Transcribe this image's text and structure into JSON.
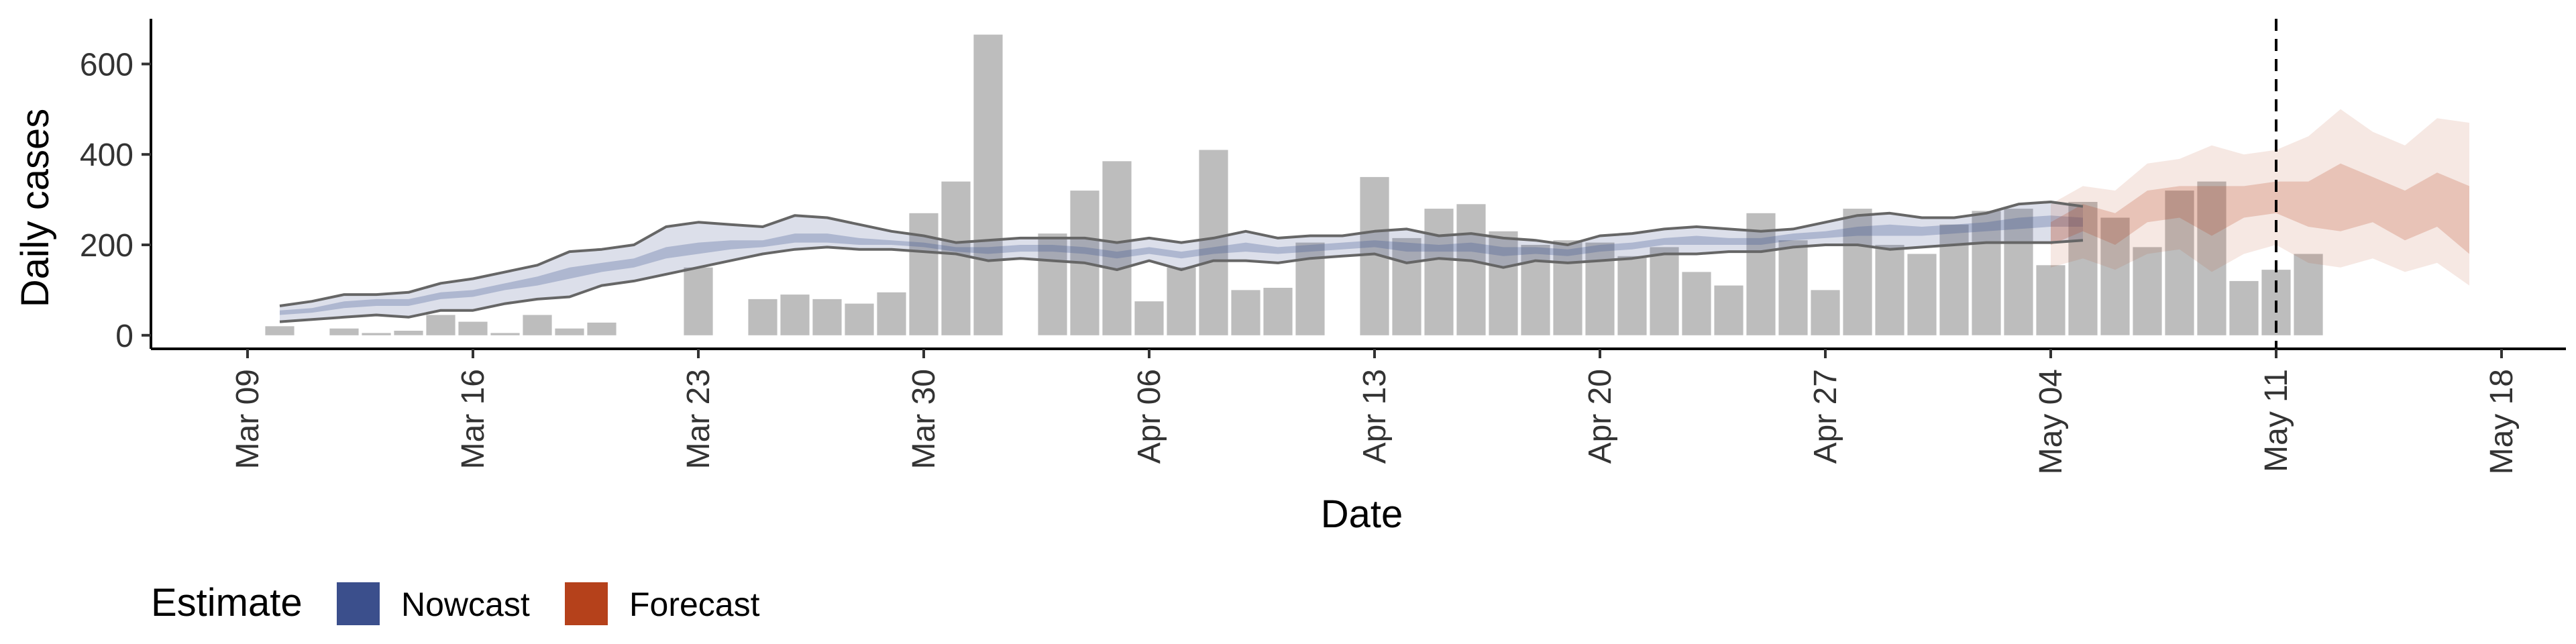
{
  "chart_data": {
    "type": "bar",
    "ylabel": "Daily cases",
    "xlabel": "Date",
    "ylim": [
      -30,
      700
    ],
    "y_ticks": [
      0,
      200,
      400,
      600
    ],
    "x_range": [
      "2020-03-06",
      "2020-05-20"
    ],
    "x_ticks": [
      {
        "date": "2020-03-09",
        "label": "Mar 09"
      },
      {
        "date": "2020-03-16",
        "label": "Mar 16"
      },
      {
        "date": "2020-03-23",
        "label": "Mar 23"
      },
      {
        "date": "2020-03-30",
        "label": "Mar 30"
      },
      {
        "date": "2020-04-06",
        "label": "Apr 06"
      },
      {
        "date": "2020-04-13",
        "label": "Apr 13"
      },
      {
        "date": "2020-04-20",
        "label": "Apr 20"
      },
      {
        "date": "2020-04-27",
        "label": "Apr 27"
      },
      {
        "date": "2020-05-04",
        "label": "May 04"
      },
      {
        "date": "2020-05-11",
        "label": "May 11"
      },
      {
        "date": "2020-05-18",
        "label": "May 18"
      }
    ],
    "cases": {
      "start_date": "2020-03-10",
      "bar_color": "#bdbdbd",
      "values": [
        20,
        0,
        15,
        5,
        10,
        45,
        30,
        5,
        45,
        15,
        28,
        0,
        0,
        150,
        0,
        80,
        90,
        80,
        70,
        95,
        270,
        340,
        665,
        0,
        225,
        320,
        385,
        75,
        150,
        410,
        100,
        105,
        205,
        0,
        350,
        215,
        280,
        290,
        230,
        200,
        210,
        205,
        175,
        195,
        140,
        110,
        270,
        210,
        100,
        280,
        200,
        180,
        245,
        275,
        280,
        155,
        295,
        260,
        195,
        320,
        340,
        120,
        145,
        180
      ]
    },
    "nowcast": {
      "name": "Nowcast",
      "color": "#3b4f8c",
      "start_date": "2020-03-10",
      "lower90": [
        30,
        35,
        40,
        45,
        40,
        55,
        55,
        70,
        80,
        85,
        110,
        120,
        135,
        150,
        165,
        180,
        190,
        195,
        190,
        190,
        185,
        180,
        165,
        170,
        165,
        160,
        145,
        165,
        145,
        165,
        165,
        160,
        170,
        175,
        180,
        160,
        170,
        165,
        150,
        165,
        160,
        165,
        170,
        180,
        180,
        185,
        185,
        195,
        200,
        200,
        190,
        195,
        200,
        205,
        205,
        205,
        210
      ],
      "upper90": [
        65,
        75,
        90,
        90,
        95,
        115,
        125,
        140,
        155,
        185,
        190,
        200,
        240,
        250,
        245,
        240,
        265,
        260,
        245,
        230,
        220,
        205,
        210,
        215,
        215,
        215,
        205,
        215,
        205,
        215,
        230,
        215,
        220,
        220,
        230,
        235,
        220,
        225,
        215,
        210,
        200,
        220,
        225,
        235,
        240,
        235,
        230,
        235,
        250,
        265,
        270,
        260,
        260,
        270,
        290,
        295,
        285
      ],
      "lower50": [
        45,
        50,
        60,
        65,
        65,
        80,
        85,
        100,
        110,
        125,
        140,
        150,
        170,
        180,
        190,
        195,
        205,
        205,
        200,
        200,
        195,
        185,
        180,
        185,
        185,
        180,
        170,
        180,
        170,
        180,
        185,
        180,
        185,
        190,
        195,
        185,
        185,
        185,
        175,
        180,
        175,
        185,
        190,
        200,
        200,
        200,
        200,
        210,
        215,
        220,
        220,
        220,
        225,
        230,
        235,
        240,
        240
      ],
      "upper50": [
        55,
        60,
        75,
        80,
        80,
        95,
        100,
        115,
        130,
        150,
        160,
        170,
        195,
        205,
        210,
        210,
        225,
        225,
        215,
        210,
        205,
        195,
        195,
        200,
        200,
        195,
        185,
        195,
        185,
        195,
        205,
        195,
        200,
        205,
        210,
        205,
        200,
        205,
        195,
        195,
        190,
        200,
        205,
        215,
        220,
        215,
        215,
        225,
        230,
        240,
        245,
        240,
        245,
        250,
        260,
        265,
        260
      ]
    },
    "forecast": {
      "name": "Forecast",
      "color": "#b5411b",
      "start_date": "2020-05-04",
      "lower90": [
        150,
        170,
        145,
        180,
        190,
        140,
        180,
        200,
        160,
        150,
        170,
        140,
        160,
        110
      ],
      "upper90": [
        290,
        330,
        320,
        380,
        390,
        420,
        400,
        410,
        440,
        500,
        450,
        420,
        480,
        470
      ],
      "lower50": [
        200,
        230,
        200,
        250,
        260,
        220,
        260,
        270,
        240,
        230,
        250,
        210,
        240,
        180
      ],
      "upper50": [
        250,
        290,
        270,
        320,
        330,
        330,
        330,
        340,
        340,
        380,
        350,
        320,
        360,
        330
      ]
    },
    "vline_date": "2020-05-11",
    "legend": {
      "title": "Estimate",
      "position": "bottom-left",
      "items": [
        {
          "label": "Nowcast",
          "color": "#3b4f8c"
        },
        {
          "label": "Forecast",
          "color": "#b5411b"
        }
      ]
    }
  }
}
